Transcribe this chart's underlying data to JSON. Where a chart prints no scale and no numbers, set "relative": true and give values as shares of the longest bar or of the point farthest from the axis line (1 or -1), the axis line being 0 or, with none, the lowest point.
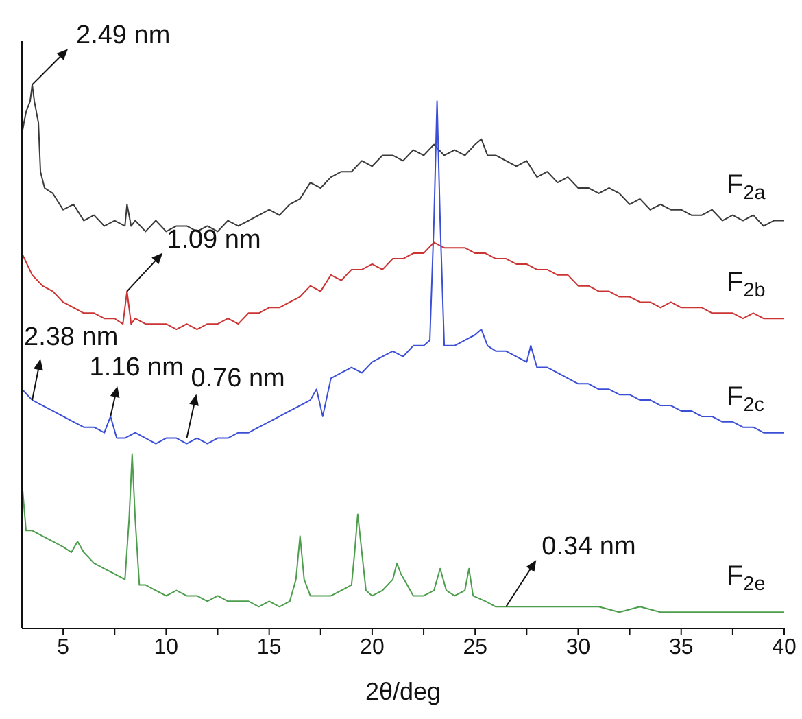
{
  "chart_data": {
    "type": "line",
    "relative": true,
    "xlabel": "2θ/deg",
    "xlim": [
      3,
      40
    ],
    "xticks": [
      5,
      {
        "value": 7.5,
        "label": null
      },
      10,
      {
        "value": 12.5,
        "label": null
      },
      15,
      {
        "value": 17.5,
        "label": null
      },
      20,
      {
        "value": 22.5,
        "label": null
      },
      25,
      {
        "value": 27.5,
        "label": null
      },
      30,
      {
        "value": 32.5,
        "label": null
      },
      35,
      {
        "value": 37.5,
        "label": null
      },
      40
    ],
    "grid": false,
    "legend": false,
    "marker": "none",
    "line_style": "solid",
    "annotations": [
      {
        "text": "2.49 nm",
        "x": 3.5,
        "y": 1
      },
      {
        "text": "1.09 nm",
        "x": 8.1,
        "y": 0.62
      },
      {
        "text": "2.38 nm",
        "x": 3.5,
        "y": 0.42
      },
      {
        "text": "1.16 nm",
        "x": 7.3,
        "y": 0.39
      },
      {
        "text": "0.76 nm",
        "x": 11,
        "y": 0.35
      },
      {
        "text": "0.34 nm",
        "x": 26.5,
        "y": 0.04
      }
    ],
    "series": [
      {
        "name": "F$_{2a}$",
        "color": "#3a3a3a",
        "x": [
          3,
          3.2,
          3.4,
          3.5,
          3.6,
          3.8,
          3.9,
          4.1,
          4.5,
          5,
          5.5,
          6,
          6.5,
          7,
          7.5,
          8,
          8.1,
          8.3,
          8.5,
          9,
          9.5,
          10,
          10.5,
          11,
          11.5,
          12,
          12.5,
          13,
          13.5,
          14,
          14.5,
          15,
          15.5,
          16,
          16.5,
          17,
          17.5,
          18,
          18.5,
          19,
          19.5,
          20,
          20.5,
          21,
          21.5,
          22,
          22.5,
          23,
          23.5,
          24,
          24.5,
          25,
          25.3,
          25.6,
          26,
          26.5,
          27,
          27.5,
          28,
          28.5,
          29,
          29.5,
          30,
          30.5,
          31,
          31.5,
          32,
          32.5,
          33,
          33.5,
          34,
          34.5,
          35,
          35.5,
          36,
          36.5,
          37,
          37.5,
          38,
          38.5,
          39,
          39.5,
          40
        ],
        "values": [
          0.91,
          0.95,
          0.97,
          1,
          0.97,
          0.93,
          0.84,
          0.81,
          0.8,
          0.77,
          0.78,
          0.75,
          0.76,
          0.74,
          0.75,
          0.74,
          0.78,
          0.74,
          0.75,
          0.73,
          0.75,
          0.73,
          0.74,
          0.74,
          0.73,
          0.74,
          0.73,
          0.75,
          0.74,
          0.75,
          0.76,
          0.77,
          0.76,
          0.78,
          0.79,
          0.82,
          0.81,
          0.83,
          0.84,
          0.84,
          0.86,
          0.85,
          0.87,
          0.87,
          0.86,
          0.88,
          0.87,
          0.89,
          0.87,
          0.88,
          0.87,
          0.89,
          0.9,
          0.87,
          0.87,
          0.86,
          0.85,
          0.86,
          0.83,
          0.84,
          0.82,
          0.83,
          0.81,
          0.81,
          0.8,
          0.81,
          0.8,
          0.78,
          0.79,
          0.77,
          0.78,
          0.77,
          0.77,
          0.76,
          0.76,
          0.77,
          0.75,
          0.76,
          0.75,
          0.76,
          0.74,
          0.75,
          0.75
        ]
      },
      {
        "name": "F$_{2b}$",
        "color": "#cc3333",
        "x": [
          3,
          3.5,
          4,
          4.5,
          5,
          5.5,
          6,
          6.5,
          7,
          7.5,
          7.9,
          8.1,
          8.3,
          8.5,
          9,
          9.5,
          10,
          10.5,
          11,
          11.5,
          12,
          12.5,
          13,
          13.5,
          14,
          14.5,
          15,
          15.5,
          16,
          16.5,
          17,
          17.5,
          18,
          18.5,
          19,
          19.5,
          20,
          20.5,
          21,
          21.5,
          22,
          22.5,
          23,
          23.5,
          24,
          24.5,
          25,
          25.5,
          26,
          26.5,
          27,
          27.5,
          28,
          28.5,
          29,
          29.5,
          30,
          30.5,
          31,
          31.5,
          32,
          32.5,
          33,
          33.5,
          34,
          34.5,
          35,
          35.5,
          36,
          36.5,
          37,
          37.5,
          38,
          38.5,
          39,
          39.5,
          40
        ],
        "values": [
          0.69,
          0.65,
          0.63,
          0.62,
          0.6,
          0.59,
          0.58,
          0.58,
          0.57,
          0.57,
          0.56,
          0.62,
          0.56,
          0.57,
          0.56,
          0.56,
          0.56,
          0.55,
          0.56,
          0.55,
          0.56,
          0.56,
          0.57,
          0.56,
          0.58,
          0.58,
          0.59,
          0.59,
          0.6,
          0.61,
          0.63,
          0.62,
          0.65,
          0.64,
          0.66,
          0.66,
          0.67,
          0.66,
          0.68,
          0.68,
          0.69,
          0.69,
          0.71,
          0.7,
          0.7,
          0.7,
          0.69,
          0.69,
          0.68,
          0.68,
          0.67,
          0.67,
          0.66,
          0.66,
          0.65,
          0.65,
          0.63,
          0.63,
          0.62,
          0.62,
          0.61,
          0.61,
          0.6,
          0.6,
          0.59,
          0.6,
          0.59,
          0.59,
          0.59,
          0.58,
          0.58,
          0.58,
          0.57,
          0.58,
          0.57,
          0.57,
          0.57
        ]
      },
      {
        "name": "F$_{2c}$",
        "color": "#3b4fd6",
        "x": [
          3,
          3.5,
          4,
          4.5,
          5,
          5.5,
          6,
          6.5,
          7,
          7.3,
          7.6,
          8,
          8.5,
          9,
          9.5,
          10,
          10.5,
          11,
          11.5,
          12,
          12.5,
          13,
          13.5,
          14,
          14.5,
          15,
          15.5,
          16,
          16.5,
          17,
          17.3,
          17.6,
          18,
          18.5,
          19,
          19.5,
          20,
          20.5,
          21,
          21.5,
          22,
          22.5,
          22.8,
          23,
          23.15,
          23.3,
          23.5,
          24,
          24.5,
          25,
          25.3,
          25.6,
          26,
          26.5,
          27,
          27.5,
          27.7,
          28,
          28.5,
          29,
          29.5,
          30,
          30.5,
          31,
          31.5,
          32,
          32.5,
          33,
          33.5,
          34,
          34.5,
          35,
          35.5,
          36,
          36.5,
          37,
          37.5,
          38,
          38.5,
          39,
          39.5,
          40
        ],
        "values": [
          0.44,
          0.42,
          0.41,
          0.4,
          0.39,
          0.38,
          0.37,
          0.37,
          0.36,
          0.39,
          0.35,
          0.35,
          0.36,
          0.35,
          0.34,
          0.35,
          0.35,
          0.34,
          0.35,
          0.34,
          0.35,
          0.35,
          0.36,
          0.36,
          0.37,
          0.38,
          0.39,
          0.4,
          0.41,
          0.42,
          0.44,
          0.39,
          0.46,
          0.47,
          0.48,
          0.47,
          0.49,
          0.5,
          0.51,
          0.5,
          0.52,
          0.52,
          0.53,
          0.75,
          0.97,
          0.75,
          0.52,
          0.52,
          0.53,
          0.54,
          0.55,
          0.52,
          0.51,
          0.51,
          0.5,
          0.49,
          0.52,
          0.48,
          0.48,
          0.47,
          0.46,
          0.45,
          0.45,
          0.44,
          0.44,
          0.43,
          0.43,
          0.42,
          0.42,
          0.41,
          0.41,
          0.4,
          0.4,
          0.39,
          0.39,
          0.38,
          0.38,
          0.37,
          0.37,
          0.36,
          0.36,
          0.36
        ]
      },
      {
        "name": "F$_{2e}$",
        "color": "#4c9e4c",
        "x": [
          3,
          3.2,
          3.5,
          4,
          4.5,
          5,
          5.4,
          5.7,
          6,
          6.5,
          7,
          7.5,
          8,
          8.2,
          8.35,
          8.5,
          8.7,
          9,
          9.5,
          10,
          10.5,
          11,
          11.5,
          12,
          12.5,
          13,
          13.5,
          14,
          14.5,
          15,
          15.5,
          16,
          16.3,
          16.5,
          16.7,
          17,
          17.5,
          18,
          18.5,
          19,
          19.15,
          19.3,
          19.5,
          19.7,
          20,
          20.5,
          21,
          21.2,
          21.4,
          21.7,
          22,
          22.5,
          23,
          23.3,
          23.6,
          24,
          24.5,
          24.7,
          24.9,
          25.5,
          26,
          26.5,
          27,
          28,
          29,
          30,
          31,
          32,
          33,
          34,
          35,
          36,
          37,
          38,
          39,
          40
        ],
        "values": [
          0.27,
          0.18,
          0.18,
          0.17,
          0.16,
          0.15,
          0.14,
          0.16,
          0.14,
          0.12,
          0.11,
          0.1,
          0.09,
          0.2,
          0.32,
          0.2,
          0.08,
          0.08,
          0.07,
          0.06,
          0.07,
          0.06,
          0.06,
          0.05,
          0.06,
          0.05,
          0.05,
          0.05,
          0.04,
          0.05,
          0.04,
          0.05,
          0.09,
          0.17,
          0.09,
          0.06,
          0.06,
          0.06,
          0.07,
          0.08,
          0.14,
          0.21,
          0.14,
          0.07,
          0.06,
          0.07,
          0.09,
          0.12,
          0.1,
          0.08,
          0.06,
          0.06,
          0.07,
          0.11,
          0.07,
          0.06,
          0.07,
          0.11,
          0.06,
          0.05,
          0.04,
          0.04,
          0.04,
          0.04,
          0.04,
          0.04,
          0.04,
          0.03,
          0.04,
          0.03,
          0.03,
          0.03,
          0.03,
          0.03,
          0.03,
          0.03
        ]
      }
    ]
  }
}
